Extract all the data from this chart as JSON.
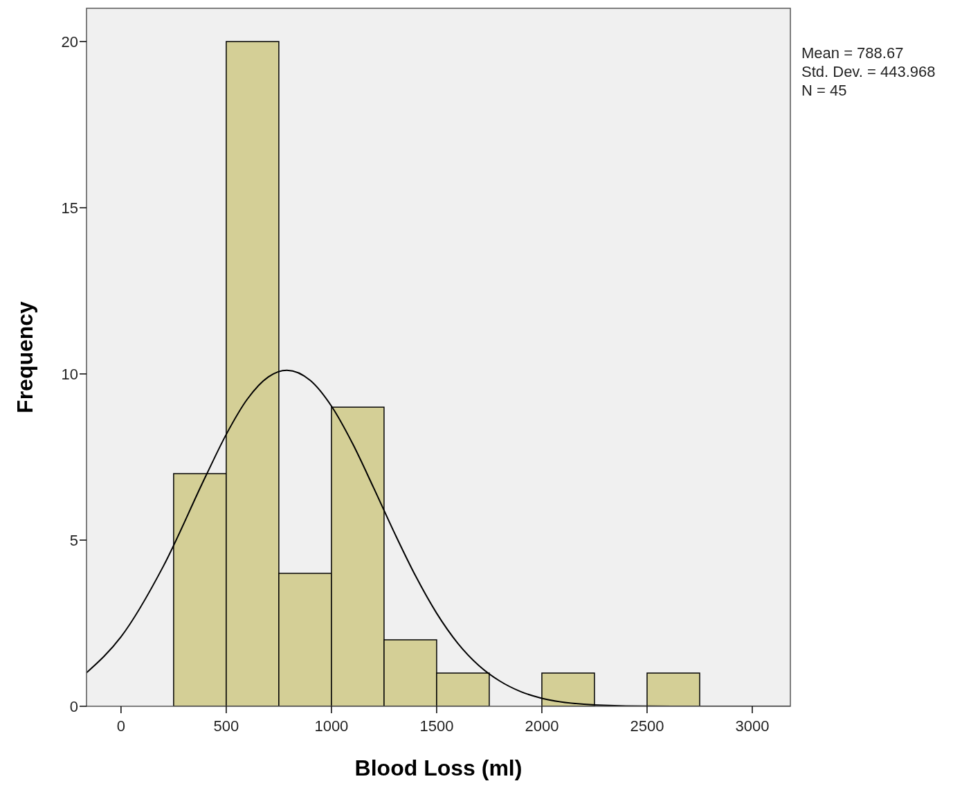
{
  "chart_data": {
    "type": "histogram",
    "xlabel": "Blood Loss (ml)",
    "ylabel": "Frequency",
    "bins": [
      250,
      500,
      750,
      1000,
      1250,
      1500,
      1750,
      2000,
      2250,
      2500,
      2750
    ],
    "series": [
      {
        "color": "#d4cf96",
        "values": [
          7,
          20,
          4,
          9,
          2,
          1,
          0,
          1,
          0,
          1
        ]
      },
      {
        "type": "line",
        "color": "#000000",
        "x": [
          -164,
          0,
          200,
          400,
          500,
          600,
          700,
          788.67,
          900,
          1000,
          1100,
          1200,
          1300,
          1400,
          1500,
          1600,
          1700,
          1800,
          1900,
          2000,
          2200,
          2400,
          2700,
          3181
        ],
        "values": [
          1.01,
          2.09,
          4.2,
          6.89,
          8.18,
          9.24,
          9.91,
          10.11,
          9.8,
          9.03,
          7.91,
          6.58,
          5.21,
          3.92,
          2.8,
          1.9,
          1.23,
          0.76,
          0.44,
          0.24,
          0.06,
          0.01,
          0,
          0
        ]
      }
    ],
    "xlim": [
      -164,
      3181
    ],
    "xticks": [
      0,
      500,
      1000,
      1500,
      2000,
      2500,
      3000
    ],
    "ylim": [
      0,
      21
    ],
    "yticks": [
      0,
      5,
      10,
      15,
      20
    ],
    "grid": false,
    "annotations": [
      "Mean = 788.67",
      "Std. Dev. = 443.968",
      "N = 45"
    ]
  }
}
